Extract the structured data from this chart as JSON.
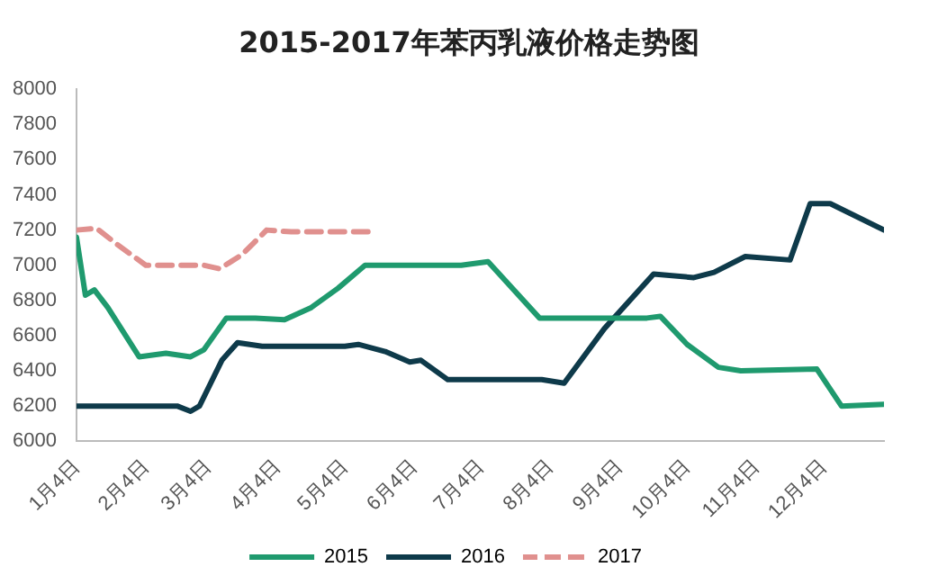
{
  "chart_data": {
    "type": "line",
    "title": "2015-2017年苯丙乳液价格走势图",
    "xlim": [
      "--01-04",
      "--12-31"
    ],
    "xticks": [
      {
        "value": "--01-04",
        "label": "1月4日"
      },
      {
        "value": "--02-04",
        "label": "2月4日"
      },
      {
        "value": "--03-04",
        "label": "3月4日"
      },
      {
        "value": "--04-04",
        "label": "4月4日"
      },
      {
        "value": "--05-04",
        "label": "5月4日"
      },
      {
        "value": "--06-04",
        "label": "6月4日"
      },
      {
        "value": "--07-04",
        "label": "7月4日"
      },
      {
        "value": "--08-04",
        "label": "8月4日"
      },
      {
        "value": "--09-04",
        "label": "9月4日"
      },
      {
        "value": "--10-04",
        "label": "10月4日"
      },
      {
        "value": "--11-04",
        "label": "11月4日"
      },
      {
        "value": "--12-04",
        "label": "12月4日"
      }
    ],
    "ylim": [
      6000,
      8000
    ],
    "yticks": [
      6000,
      6200,
      6400,
      6600,
      6800,
      7000,
      7200,
      7400,
      7600,
      7800,
      8000
    ],
    "series": [
      {
        "name": "2015",
        "color": "#1f9a6e",
        "x": [
          "--01-04",
          "--01-08",
          "--01-12",
          "--01-18",
          "--02-01",
          "--02-13",
          "--02-24",
          "--03-02",
          "--03-12",
          "--03-25",
          "--04-07",
          "--04-19",
          "--05-01",
          "--05-13",
          "--05-22",
          "--06-16",
          "--06-25",
          "--07-07",
          "--07-30",
          "--09-16",
          "--09-22",
          "--10-04",
          "--10-18",
          "--10-28",
          "--12-01",
          "--12-12",
          "--12-31"
        ],
        "values": [
          7160,
          6830,
          6860,
          6760,
          6480,
          6500,
          6480,
          6520,
          6700,
          6700,
          6690,
          6760,
          6870,
          7000,
          7000,
          7000,
          7000,
          7020,
          6700,
          6700,
          6710,
          6550,
          6420,
          6400,
          6410,
          6200,
          6210
        ]
      },
      {
        "name": "2016",
        "color": "#0e3a4a",
        "x": [
          "--01-04",
          "--02-13",
          "--02-18",
          "--02-24",
          "--02-28",
          "--03-10",
          "--03-17",
          "--03-28",
          "--05-04",
          "--05-10",
          "--05-22",
          "--06-02",
          "--06-07",
          "--06-19",
          "--07-31",
          "--08-10",
          "--08-28",
          "--09-19",
          "--10-07",
          "--10-16",
          "--10-30",
          "--11-19",
          "--11-28",
          "--12-07",
          "--12-31"
        ],
        "values": [
          6200,
          6200,
          6200,
          6170,
          6200,
          6460,
          6560,
          6540,
          6540,
          6550,
          6510,
          6450,
          6460,
          6350,
          6350,
          6330,
          6640,
          6950,
          6930,
          6960,
          7050,
          7030,
          7350,
          7350,
          7200
        ]
      },
      {
        "name": "2017",
        "color": "#e0908e",
        "line_style": "dashed",
        "x": [
          "--01-04",
          "--01-13",
          "--01-22",
          "--02-04",
          "--03-02",
          "--03-09",
          "--03-19",
          "--03-30",
          "--04-10",
          "--05-15"
        ],
        "values": [
          7200,
          7210,
          7120,
          7000,
          7000,
          6980,
          7060,
          7200,
          7190,
          7190
        ]
      }
    ],
    "legend": "bottom",
    "grid": false,
    "marker": "none"
  }
}
